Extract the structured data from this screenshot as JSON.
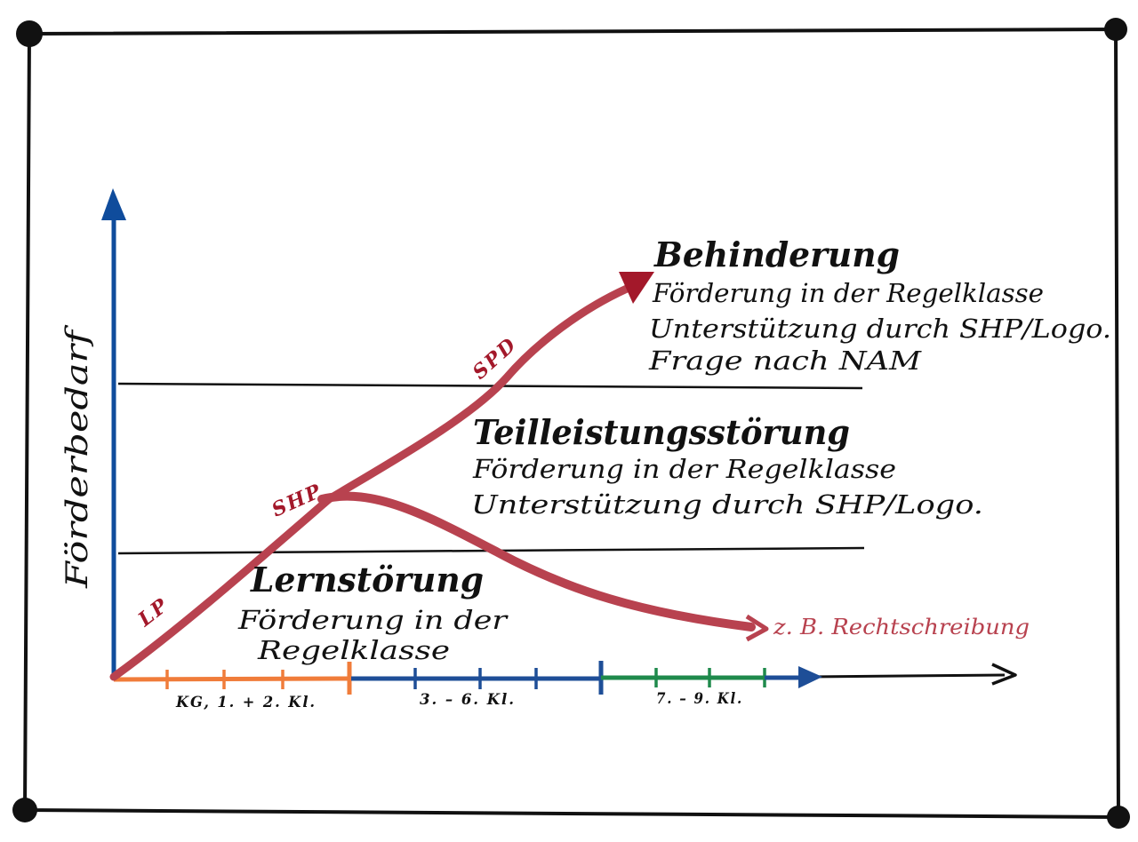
{
  "colors": {
    "axis_vertical": "#0f4c9c",
    "arrow_red": "#b8424f",
    "label_red": "#a3182a",
    "segment_orange": "#f07c3a",
    "segment_blue": "#1e4e97",
    "segment_green": "#1f8a4c",
    "ink": "#111111"
  },
  "y_axis": {
    "label": "Förderbedarf"
  },
  "x_axis": {
    "segments": [
      {
        "label": "KG, 1. + 2. Kl."
      },
      {
        "label": "3. – 6. Kl."
      },
      {
        "label": "7. – 9. Kl."
      }
    ]
  },
  "zones": {
    "high": {
      "title": "Behinderung",
      "lines": [
        "Förderung in der Regelklasse",
        "Unterstützung durch SHP/Logo.",
        "Frage nach NAM"
      ]
    },
    "middle": {
      "title": "Teilleistungsstörung",
      "lines": [
        "Förderung in der Regelklasse",
        "Unterstützung durch SHP/Logo."
      ]
    },
    "low": {
      "title": "Lernstörung",
      "lines": [
        "Förderung in der",
        "Regelklasse"
      ]
    }
  },
  "path_labels": {
    "lp": "LP",
    "shp": "SHP",
    "spd": "SPD"
  },
  "example_label": "z. B. Rechtschreibung"
}
